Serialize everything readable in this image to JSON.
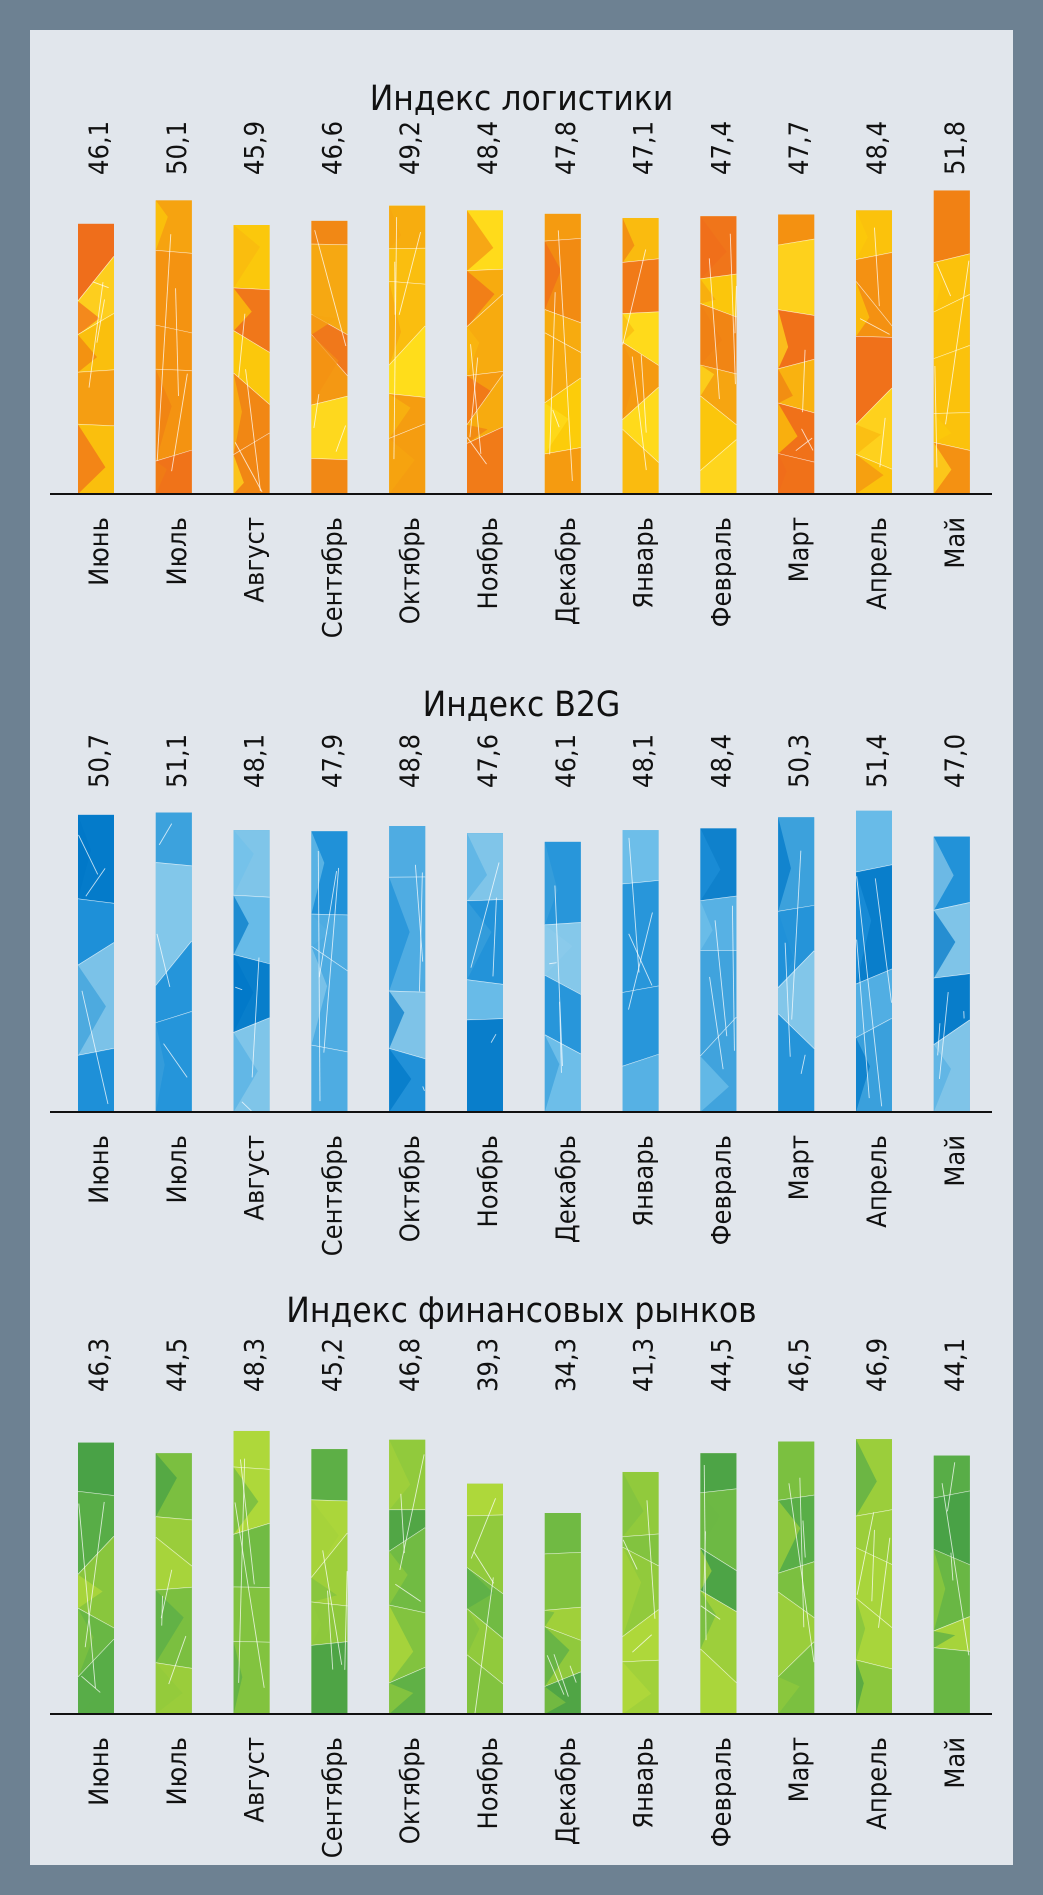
{
  "chart_data": [
    {
      "type": "bar",
      "title": "Индекс логистики",
      "categories": [
        "Июнь",
        "Июль",
        "Август",
        "Сентябрь",
        "Октябрь",
        "Ноябрь",
        "Декабрь",
        "Январь",
        "Февраль",
        "Март",
        "Апрель",
        "Май"
      ],
      "values": [
        46.1,
        50.1,
        45.9,
        46.6,
        49.2,
        48.4,
        47.8,
        47.1,
        47.4,
        47.7,
        48.4,
        51.8
      ],
      "value_labels": [
        "46,1",
        "50,1",
        "45,9",
        "46,6",
        "49,2",
        "48,4",
        "47,8",
        "47,1",
        "47,4",
        "47,7",
        "48,4",
        "51,8"
      ],
      "xlabel": "",
      "ylabel": "",
      "ylim": [
        0,
        52
      ],
      "grid": false,
      "colors": [
        "#f07c1c",
        "#f59d12",
        "#f5b21a",
        "#f7bd1e",
        "#fcd90a",
        "#fdd208",
        "#fbd10a",
        "#fbc90a",
        "#f6a716",
        "#f48b12",
        "#f38d14",
        "#f38f18"
      ],
      "palette": [
        "#ef6c1b",
        "#f07f14",
        "#f39212",
        "#f6a510",
        "#f9b810",
        "#fccb0a",
        "#ffdd1e"
      ]
    },
    {
      "type": "bar",
      "title": "Индекс B2G",
      "categories": [
        "Июнь",
        "Июль",
        "Август",
        "Сентябрь",
        "Октябрь",
        "Ноябрь",
        "Декабрь",
        "Январь",
        "Февраль",
        "Март",
        "Апрель",
        "Май"
      ],
      "values": [
        50.7,
        51.1,
        48.1,
        47.9,
        48.8,
        47.6,
        46.1,
        48.1,
        48.4,
        50.3,
        51.4,
        47.0
      ],
      "value_labels": [
        "50,7",
        "51,1",
        "48,1",
        "47,9",
        "48,8",
        "47,6",
        "46,1",
        "48,1",
        "48,4",
        "50,3",
        "51,4",
        "47,0"
      ],
      "xlabel": "",
      "ylabel": "",
      "ylim": [
        0,
        52
      ],
      "grid": false,
      "colors": [
        "#1f8fd8",
        "#49aee3",
        "#3ba2dd",
        "#2c95d8",
        "#2e96d8",
        "#3f9edb",
        "#5eb2e2",
        "#5eb3e3",
        "#66b5e3",
        "#4aa7df",
        "#3c9fdc",
        "#3a98d8"
      ],
      "palette": [
        "#0078c8",
        "#1e90d8",
        "#3aa0dc",
        "#55b0e4",
        "#70c0ea",
        "#8ccbeb"
      ]
    },
    {
      "type": "bar",
      "title": "Индекс финансовых рынков",
      "categories": [
        "Июнь",
        "Июль",
        "Август",
        "Сентябрь",
        "Октябрь",
        "Ноябрь",
        "Декабрь",
        "Январь",
        "Февраль",
        "Март",
        "Апрель",
        "Май"
      ],
      "values": [
        46.3,
        44.5,
        48.3,
        45.2,
        46.8,
        39.3,
        34.3,
        41.3,
        44.5,
        46.5,
        46.9,
        44.1
      ],
      "value_labels": [
        "46,3",
        "44,5",
        "48,3",
        "45,2",
        "46,8",
        "39,3",
        "34,3",
        "41,3",
        "44,5",
        "46,5",
        "46,9",
        "44,1"
      ],
      "xlabel": "",
      "ylabel": "",
      "ylim": [
        0,
        52
      ],
      "grid": false,
      "colors": [
        "#5aae48",
        "#5fb048",
        "#8cc63e",
        "#7abd40",
        "#8dc640",
        "#8ec63e",
        "#86c240",
        "#8fc73e",
        "#76bb42",
        "#62b246",
        "#66b445",
        "#58ac48"
      ],
      "palette": [
        "#46a046",
        "#58ad48",
        "#6cb844",
        "#80c240",
        "#92ca3c",
        "#a4d23a",
        "#b4da3a"
      ]
    }
  ]
}
